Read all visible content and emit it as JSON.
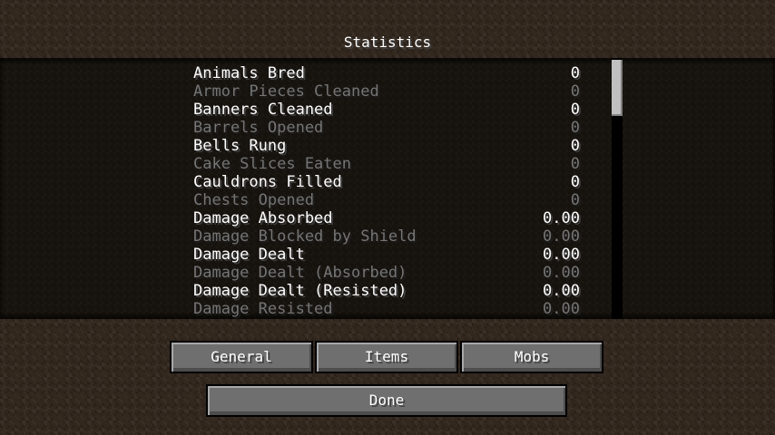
{
  "title": "Statistics",
  "stats": [
    {
      "name": "Animals Bred",
      "value": "0"
    },
    {
      "name": "Armor Pieces Cleaned",
      "value": "0"
    },
    {
      "name": "Banners Cleaned",
      "value": "0"
    },
    {
      "name": "Barrels Opened",
      "value": "0"
    },
    {
      "name": "Bells Rung",
      "value": "0"
    },
    {
      "name": "Cake Slices Eaten",
      "value": "0"
    },
    {
      "name": "Cauldrons Filled",
      "value": "0"
    },
    {
      "name": "Chests Opened",
      "value": "0"
    },
    {
      "name": "Damage Absorbed",
      "value": "0.00"
    },
    {
      "name": "Damage Blocked by Shield",
      "value": "0.00"
    },
    {
      "name": "Damage Dealt",
      "value": "0.00"
    },
    {
      "name": "Damage Dealt (Absorbed)",
      "value": "0.00"
    },
    {
      "name": "Damage Dealt (Resisted)",
      "value": "0.00"
    },
    {
      "name": "Damage Resisted",
      "value": "0.00"
    }
  ],
  "buttons": {
    "general": "General",
    "items": "Items",
    "mobs": "Mobs",
    "done": "Done"
  },
  "scroll_position": 0
}
